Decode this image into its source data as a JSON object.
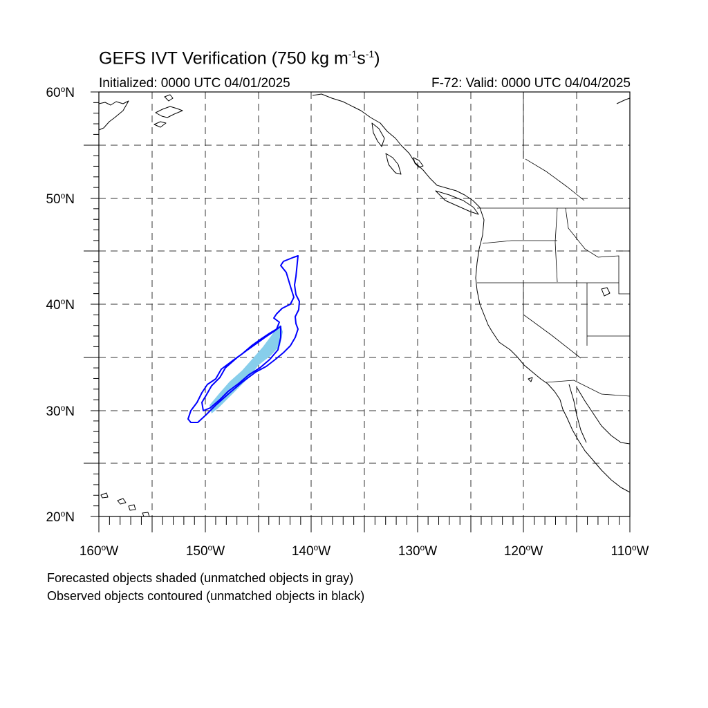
{
  "header": {
    "title_main": "GEFS IVT Verification (750 kg m",
    "title_exp1": "-1",
    "title_mid": "s",
    "title_exp2": "-1",
    "title_end": ")",
    "initialized": "Initialized: 0000 UTC 04/01/2025",
    "valid": "F-72: Valid: 0000 UTC 04/04/2025"
  },
  "axes": {
    "lat_labels": [
      {
        "text": "60",
        "hemi": "N"
      },
      {
        "text": "50",
        "hemi": "N"
      },
      {
        "text": "40",
        "hemi": "N"
      },
      {
        "text": "30",
        "hemi": "N"
      },
      {
        "text": "20",
        "hemi": "N"
      }
    ],
    "lon_labels": [
      {
        "text": "160",
        "hemi": "W"
      },
      {
        "text": "150",
        "hemi": "W"
      },
      {
        "text": "140",
        "hemi": "W"
      },
      {
        "text": "130",
        "hemi": "W"
      },
      {
        "text": "120",
        "hemi": "W"
      },
      {
        "text": "110",
        "hemi": "W"
      }
    ],
    "lat_range": [
      20,
      60
    ],
    "lon_range": [
      -160,
      -110
    ],
    "grid_spacing_deg": 5
  },
  "objects": {
    "forecast_fill_color": "#87ceeb",
    "observed_contour_color": "#0000ff"
  },
  "captions": {
    "line1": "Forecasted objects shaded (unmatched objects in gray)",
    "line2": "Observed objects contoured (unmatched objects in black)"
  }
}
